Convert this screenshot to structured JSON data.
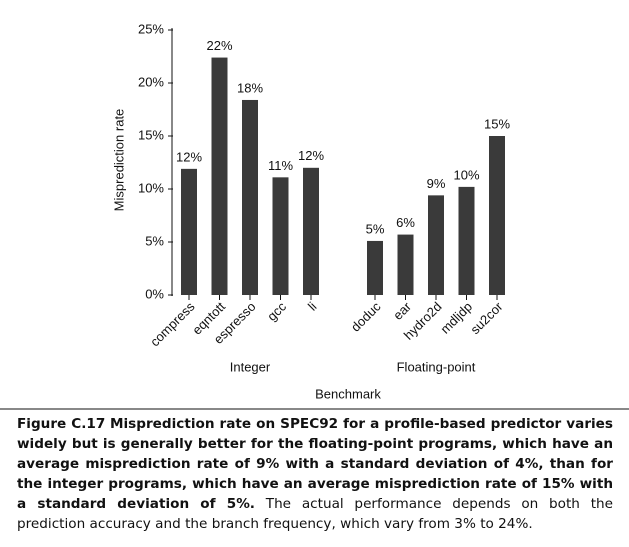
{
  "chart_data": {
    "type": "bar",
    "y_label": "Misprediction rate",
    "x_label": "Benchmark",
    "categories": [
      "compress",
      "eqntott",
      "espresso",
      "gcc",
      "li",
      null,
      "doduc",
      "ear",
      "hydro2d",
      "mdljdp",
      "su2cor"
    ],
    "values": [
      11.9,
      22.4,
      18.4,
      11.1,
      12.0,
      null,
      5.1,
      5.7,
      9.4,
      10.2,
      15.0
    ],
    "value_labels": [
      "12%",
      "22%",
      "18%",
      "11%",
      "12%",
      null,
      "5%",
      "6%",
      "9%",
      "10%",
      "15%"
    ],
    "group_labels": [
      "Integer",
      "Floating-point"
    ],
    "color": "#3a3a3a",
    "ylim": [
      0,
      25
    ],
    "yticks": [
      {
        "value": 0,
        "label": "0%"
      },
      {
        "value": 5,
        "label": "5%"
      },
      {
        "value": 10,
        "label": "10%"
      },
      {
        "value": 15,
        "label": "15%"
      },
      {
        "value": 20,
        "label": "20%"
      },
      {
        "value": 25,
        "label": "25%"
      }
    ],
    "grid": false
  },
  "caption": {
    "label": "Figure C.17",
    "bold_text": "Misprediction rate on SPEC92 for a profile-based predictor varies widely but is generally better for the floating-point programs, which have an average misprediction rate of 9% with a standard deviation of 4%, than for the integer programs, which have an average misprediction rate of 15% with a standard deviation of 5%.",
    "text": "The actual performance depends on both the prediction accuracy and the branch frequency, which vary from 3% to 24%."
  }
}
